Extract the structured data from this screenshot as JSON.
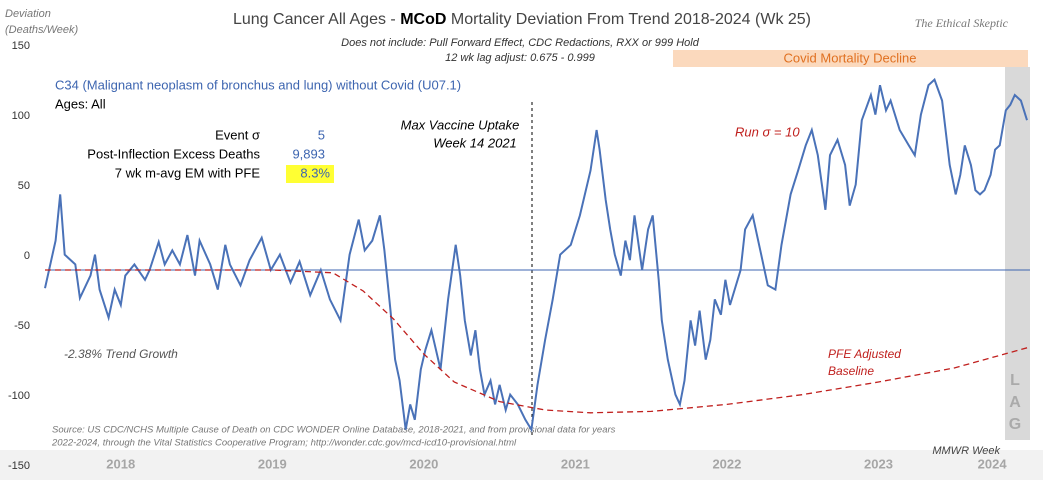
{
  "chart_data": {
    "type": "line",
    "title_parts": [
      "Lung Cancer All Ages - ",
      "MCoD",
      " Mortality Deviation From Trend  2018-2024 (Wk 25)"
    ],
    "subtitle_lines": [
      "Does not include: Pull Forward Effect,  CDC Redactions, RXX or 999 Hold",
      "12 wk lag adjust: 0.675 - 0.999"
    ],
    "brand": "The Ethical Skeptic",
    "y_label_lines": [
      "Deviation",
      "(Deaths/Week)"
    ],
    "x_label": "MMWR Week",
    "heading": "C34 (Malignant neoplasm of bronchus and lung) without Covid (U07.1)",
    "ages": "Ages: All",
    "stats": [
      [
        "Event σ",
        "5"
      ],
      [
        "Post-Inflection Excess Deaths",
        "9,893"
      ],
      [
        "7 wk m-avg EM with PFE",
        "8.3%"
      ]
    ],
    "annotations": {
      "vaccine": [
        "Max Vaccine Uptake",
        "Week 14 2021"
      ],
      "run": "Run σ = 10",
      "trend": "-2.38% Trend Growth",
      "pfe": [
        "PFE Adjusted",
        "Baseline"
      ],
      "decline": "Covid Mortality Decline",
      "lag": [
        "L",
        "A",
        "G"
      ]
    },
    "source_lines": [
      "Source: US CDC/NCHS Multiple Cause of Death on CDC WONDER Online Database, 2018-2021, and from provisional data for years",
      "2022-2024, through the Vital Statistics Cooperative Program; http://wonder.cdc.gov/mcd-icd10-provisional.html"
    ],
    "baseline": -10,
    "xlim": [
      2018,
      2024.5
    ],
    "ylim": [
      -150,
      150
    ],
    "yticks": [
      -150,
      -100,
      -50,
      0,
      50,
      100,
      150
    ],
    "xticks": [
      {
        "value": 2018.5,
        "label": "2018"
      },
      {
        "value": 2019.5,
        "label": "2019"
      },
      {
        "value": 2020.5,
        "label": "2020"
      },
      {
        "value": 2021.5,
        "label": "2021"
      },
      {
        "value": 2022.5,
        "label": "2022"
      },
      {
        "value": 2023.5,
        "label": "2023"
      },
      {
        "value": 2024.25,
        "label": "2024"
      }
    ],
    "series": [
      {
        "color": "#4a72b8",
        "dash": false,
        "x": [
          2018.0,
          2018.07,
          2018.1,
          2018.13,
          2018.2,
          2018.23,
          2018.3,
          2018.33,
          2018.36,
          2018.42,
          2018.46,
          2018.5,
          2018.53,
          2018.59,
          2018.66,
          2018.69,
          2018.75,
          2018.79,
          2018.84,
          2018.89,
          2018.94,
          2018.99,
          2019.02,
          2019.09,
          2019.14,
          2019.19,
          2019.22,
          2019.29,
          2019.35,
          2019.43,
          2019.49,
          2019.55,
          2019.62,
          2019.68,
          2019.75,
          2019.82,
          2019.88,
          2019.95,
          2020.01,
          2020.07,
          2020.11,
          2020.16,
          2020.21,
          2020.24,
          2020.28,
          2020.31,
          2020.34,
          2020.38,
          2020.41,
          2020.44,
          2020.48,
          2020.51,
          2020.55,
          2020.61,
          2020.66,
          2020.71,
          2020.74,
          2020.77,
          2020.81,
          2020.84,
          2020.87,
          2020.9,
          2020.94,
          2020.97,
          2021.0,
          2021.04,
          2021.07,
          2021.12,
          2021.17,
          2021.21,
          2021.25,
          2021.3,
          2021.35,
          2021.4,
          2021.47,
          2021.53,
          2021.6,
          2021.64,
          2021.66,
          2021.7,
          2021.73,
          2021.76,
          2021.8,
          2021.83,
          2021.86,
          2021.89,
          2021.94,
          2021.98,
          2022.01,
          2022.05,
          2022.07,
          2022.11,
          2022.16,
          2022.19,
          2022.22,
          2022.26,
          2022.29,
          2022.32,
          2022.36,
          2022.39,
          2022.42,
          2022.46,
          2022.49,
          2022.52,
          2022.59,
          2022.62,
          2022.67,
          2022.72,
          2022.77,
          2022.82,
          2022.86,
          2022.92,
          2022.97,
          2023.02,
          2023.06,
          2023.1,
          2023.15,
          2023.18,
          2023.23,
          2023.28,
          2023.31,
          2023.35,
          2023.39,
          2023.45,
          2023.48,
          2023.51,
          2023.55,
          2023.58,
          2023.64,
          2023.7,
          2023.74,
          2023.78,
          2023.83,
          2023.87,
          2023.92,
          2023.97,
          2024.01,
          2024.04,
          2024.07,
          2024.11,
          2024.14,
          2024.17,
          2024.2,
          2024.24,
          2024.27,
          2024.3,
          2024.34,
          2024.37,
          2024.4,
          2024.44,
          2024.48
        ],
        "values": [
          -23,
          11,
          44,
          1,
          -6,
          -30,
          -14,
          1,
          -24,
          -44,
          -24,
          -35,
          -14,
          -6,
          -17,
          -10,
          10,
          -6,
          4,
          -6,
          15,
          -14,
          11,
          -6,
          -24,
          8,
          -6,
          -21,
          -3,
          13,
          -10,
          1,
          -19,
          -4,
          -28,
          -10,
          -31,
          -46,
          1,
          26,
          4,
          11,
          29,
          4,
          -39,
          -74,
          -89,
          -124,
          -106,
          -117,
          -81,
          -67,
          -53,
          -81,
          -31,
          8,
          -14,
          -46,
          -71,
          -53,
          -81,
          -99,
          -89,
          -106,
          -92,
          -110,
          -99,
          -106,
          -117,
          -124,
          -92,
          -60,
          -31,
          1,
          8,
          29,
          61,
          90,
          76,
          40,
          19,
          1,
          -14,
          11,
          -3,
          29,
          -10,
          19,
          29,
          -17,
          -46,
          -74,
          -99,
          -106,
          -89,
          -46,
          -64,
          -39,
          -74,
          -60,
          -31,
          -42,
          -17,
          -35,
          -10,
          19,
          29,
          4,
          -21,
          -24,
          8,
          44,
          61,
          79,
          90,
          72,
          33,
          72,
          83,
          65,
          36,
          51,
          97,
          115,
          101,
          122,
          104,
          111,
          90,
          79,
          72,
          101,
          122,
          126,
          111,
          65,
          44,
          58,
          79,
          65,
          47,
          44,
          47,
          58,
          76,
          79,
          104,
          108,
          115,
          111,
          97
        ]
      },
      {
        "color": "#c0201e",
        "dash": true,
        "x": [
          2018.0,
          2019.5,
          2019.9,
          2020.1,
          2020.3,
          2020.5,
          2020.7,
          2021.0,
          2021.3,
          2021.6,
          2022.0,
          2022.5,
          2023.0,
          2023.5,
          2024.0,
          2024.5
        ],
        "values": [
          -10,
          -10,
          -12,
          -25,
          -45,
          -70,
          -90,
          -104,
          -110,
          -112,
          -111,
          -106,
          -99,
          -90,
          -80,
          -65
        ]
      }
    ]
  }
}
